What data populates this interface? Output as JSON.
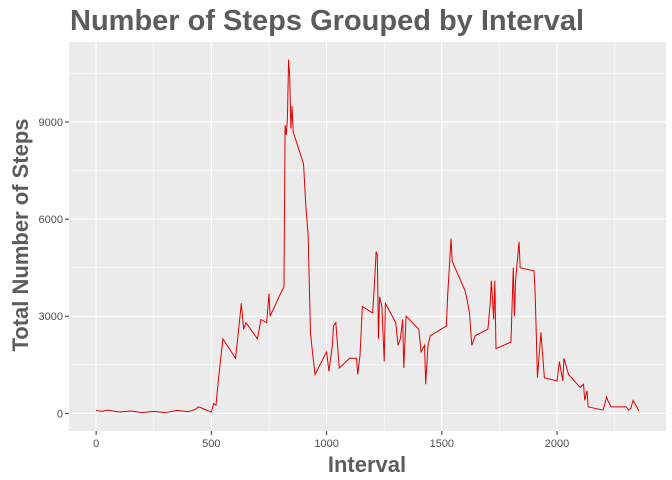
{
  "chart_data": {
    "type": "line",
    "title": "Number of Steps Grouped by Interval",
    "x_label": "Interval",
    "y_label": "Total Number of Steps",
    "x": [
      0,
      25,
      50,
      100,
      150,
      200,
      250,
      300,
      350,
      400,
      430,
      445,
      500,
      510,
      520,
      530,
      550,
      605,
      620,
      630,
      640,
      650,
      700,
      715,
      740,
      750,
      755,
      800,
      815,
      820,
      825,
      830,
      835,
      840,
      845,
      850,
      855,
      900,
      910,
      920,
      930,
      940,
      950,
      1000,
      1010,
      1025,
      1030,
      1040,
      1055,
      1100,
      1130,
      1135,
      1145,
      1150,
      1155,
      1200,
      1210,
      1215,
      1220,
      1225,
      1230,
      1240,
      1250,
      1255,
      1300,
      1310,
      1320,
      1330,
      1335,
      1345,
      1400,
      1410,
      1425,
      1430,
      1440,
      1450,
      1520,
      1525,
      1540,
      1545,
      1600,
      1610,
      1620,
      1630,
      1645,
      1700,
      1710,
      1715,
      1725,
      1730,
      1735,
      1800,
      1810,
      1815,
      1820,
      1835,
      1840,
      1900,
      1905,
      1915,
      1930,
      1945,
      2000,
      2010,
      2025,
      2030,
      2050,
      2100,
      2115,
      2120,
      2130,
      2135,
      2200,
      2215,
      2220,
      2235,
      2300,
      2310,
      2320,
      2330,
      2355
    ],
    "series": [
      {
        "color": "#e00000",
        "values": [
          90,
          60,
          100,
          40,
          70,
          20,
          60,
          20,
          90,
          50,
          120,
          200,
          40,
          300,
          250,
          1000,
          2300,
          1700,
          2700,
          3400,
          2600,
          2800,
          2300,
          2900,
          2800,
          3700,
          3000,
          3700,
          3900,
          8900,
          8600,
          9100,
          10927,
          10400,
          8800,
          9500,
          8700,
          7700,
          6400,
          5500,
          2500,
          1800,
          1200,
          1900,
          1300,
          2100,
          2700,
          2800,
          1400,
          1700,
          1700,
          1200,
          1800,
          2500,
          3300,
          3100,
          4300,
          5000,
          4900,
          2300,
          3600,
          3300,
          1600,
          3400,
          2800,
          2100,
          2300,
          2900,
          1400,
          3000,
          2600,
          1900,
          2100,
          900,
          2100,
          2400,
          2700,
          3600,
          5400,
          4700,
          3800,
          3500,
          3100,
          2100,
          2400,
          2600,
          3400,
          4100,
          2900,
          4100,
          2000,
          2200,
          4500,
          3000,
          4100,
          5300,
          4500,
          4400,
          3700,
          1100,
          2500,
          1100,
          1000,
          1600,
          1000,
          1700,
          1200,
          800,
          900,
          400,
          700,
          200,
          100,
          500,
          400,
          200,
          200,
          100,
          150,
          400,
          80
        ]
      }
    ],
    "xlim": [
      -117.75,
      2472.75
    ],
    "xticks": [
      0,
      500,
      1000,
      1500,
      2000
    ],
    "x_minor_ticks": [
      250,
      750,
      1250,
      1750,
      2250
    ],
    "ylim": [
      -546,
      11473
    ],
    "yticks": [
      0,
      3000,
      6000,
      9000
    ],
    "y_minor_ticks": [
      1500,
      4500,
      7500,
      10500
    ],
    "grid": true
  }
}
